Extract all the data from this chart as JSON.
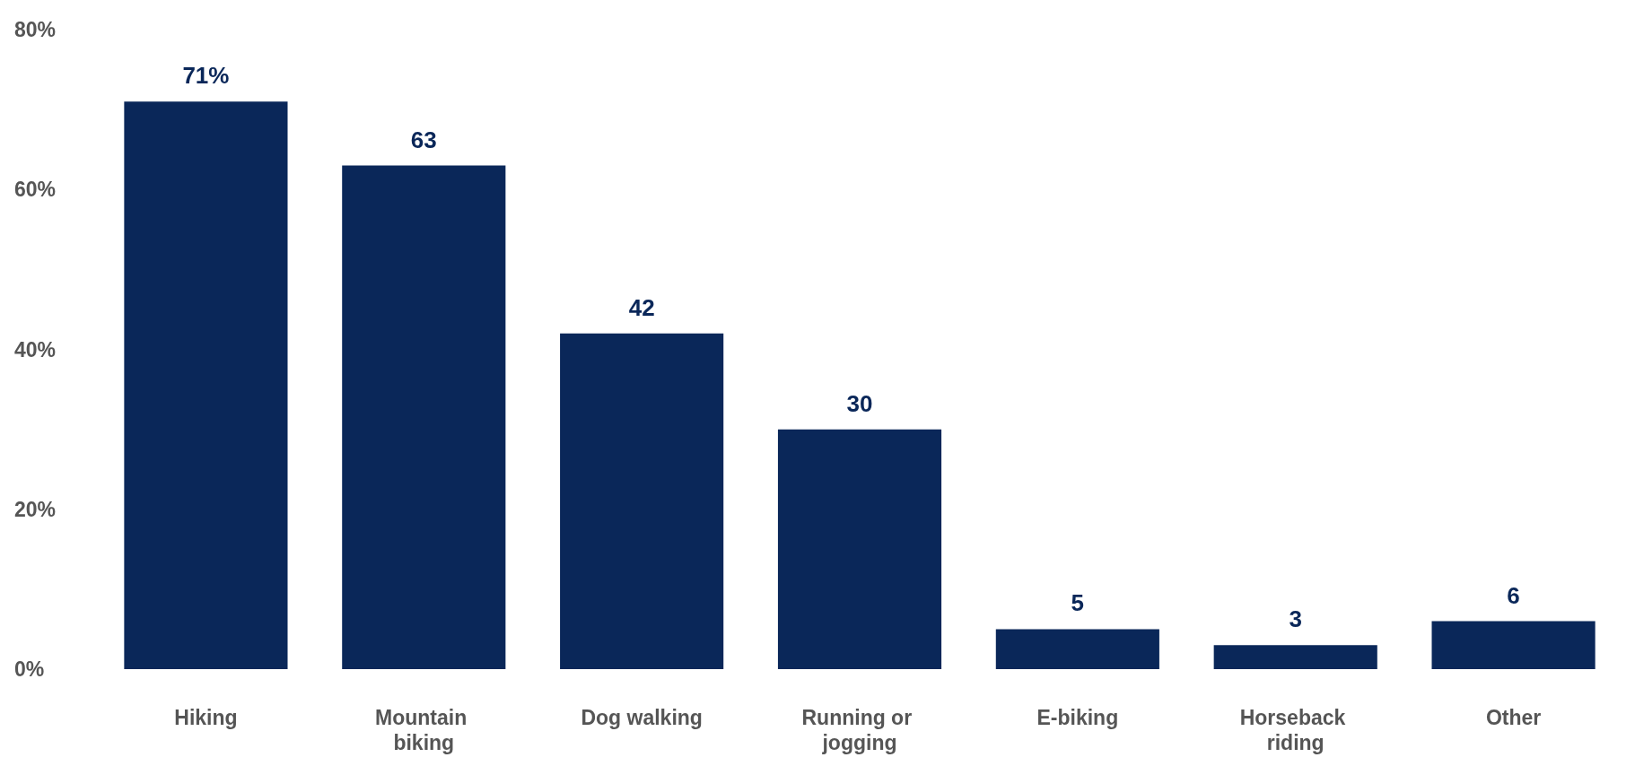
{
  "chart_data": {
    "type": "bar",
    "categories": [
      "Hiking",
      "Mountain biking",
      "Dog walking",
      "Running or jogging",
      "E-biking",
      "Horseback riding",
      "Other"
    ],
    "values": [
      71,
      63,
      42,
      30,
      5,
      3,
      6
    ],
    "value_labels": [
      "71%",
      "63",
      "42",
      "30",
      "5",
      "3",
      "6"
    ],
    "color": "#0a2759",
    "ylim": [
      0,
      80
    ],
    "yticks": [
      {
        "value": 0,
        "label": "0%"
      },
      {
        "value": 20,
        "label": "20%"
      },
      {
        "value": 40,
        "label": "40%"
      },
      {
        "value": 60,
        "label": "60%"
      },
      {
        "value": 80,
        "label": "80%"
      }
    ],
    "grid": false
  }
}
